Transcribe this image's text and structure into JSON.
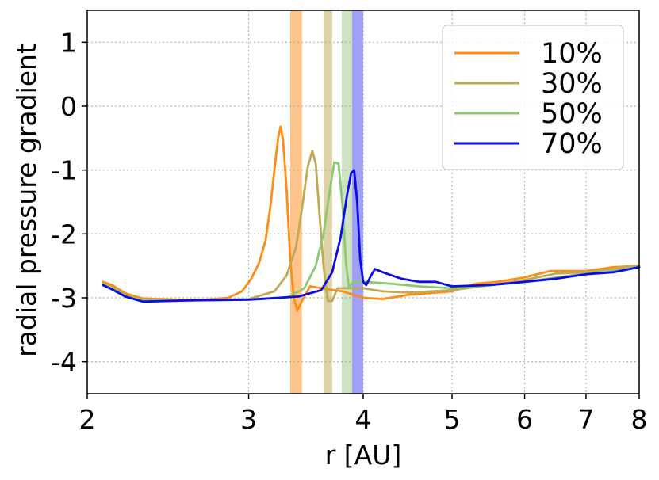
{
  "chart_data": {
    "type": "line",
    "title": "",
    "xlabel": "r [AU]",
    "ylabel": "radial pressure gradient",
    "x_scale": "log",
    "xlim": [
      2,
      8
    ],
    "ylim": [
      -4.5,
      1.5
    ],
    "xticks": [
      2,
      3,
      4,
      5,
      6,
      7,
      8
    ],
    "xtick_labels": [
      "2",
      "3",
      "4",
      "5",
      "6",
      "7",
      "8"
    ],
    "yticks": [
      1,
      0,
      -1,
      -2,
      -3,
      -4
    ],
    "ytick_labels": [
      "1",
      "0",
      "-1",
      "-2",
      "-3",
      "-4"
    ],
    "grid": true,
    "legend_position": "top-right",
    "bands": [
      {
        "from": 3.33,
        "to": 3.43,
        "color": "#ffc38c"
      },
      {
        "from": 3.62,
        "to": 3.7,
        "color": "#dcd2a5"
      },
      {
        "from": 3.79,
        "to": 3.89,
        "color": "#cde3c3"
      },
      {
        "from": 3.89,
        "to": 4.0,
        "color": "#a0a0f8"
      }
    ],
    "series": [
      {
        "name": "10%",
        "color": "#ff8c14",
        "points": [
          [
            2.08,
            -2.75
          ],
          [
            2.13,
            -2.8
          ],
          [
            2.2,
            -2.93
          ],
          [
            2.3,
            -3.01
          ],
          [
            2.5,
            -3.03
          ],
          [
            2.7,
            -3.03
          ],
          [
            2.85,
            -3.0
          ],
          [
            2.95,
            -2.9
          ],
          [
            3.02,
            -2.7
          ],
          [
            3.08,
            -2.45
          ],
          [
            3.13,
            -2.1
          ],
          [
            3.17,
            -1.55
          ],
          [
            3.2,
            -1.0
          ],
          [
            3.23,
            -0.5
          ],
          [
            3.25,
            -0.32
          ],
          [
            3.27,
            -0.52
          ],
          [
            3.3,
            -1.3
          ],
          [
            3.33,
            -2.4
          ],
          [
            3.36,
            -3.0
          ],
          [
            3.39,
            -3.2
          ],
          [
            3.43,
            -3.05
          ],
          [
            3.5,
            -2.82
          ],
          [
            3.6,
            -2.85
          ],
          [
            3.8,
            -2.9
          ],
          [
            4.0,
            -3.0
          ],
          [
            4.2,
            -3.02
          ],
          [
            4.5,
            -2.95
          ],
          [
            5.0,
            -2.9
          ],
          [
            5.3,
            -2.78
          ],
          [
            5.6,
            -2.75
          ],
          [
            6.0,
            -2.68
          ],
          [
            6.4,
            -2.58
          ],
          [
            7.0,
            -2.58
          ],
          [
            7.5,
            -2.52
          ],
          [
            8.0,
            -2.5
          ]
        ]
      },
      {
        "name": "30%",
        "color": "#bfaa55",
        "points": [
          [
            2.08,
            -2.78
          ],
          [
            2.13,
            -2.84
          ],
          [
            2.2,
            -2.96
          ],
          [
            2.3,
            -3.03
          ],
          [
            2.6,
            -3.04
          ],
          [
            3.0,
            -3.02
          ],
          [
            3.2,
            -2.9
          ],
          [
            3.3,
            -2.65
          ],
          [
            3.38,
            -2.2
          ],
          [
            3.43,
            -1.6
          ],
          [
            3.48,
            -0.95
          ],
          [
            3.52,
            -0.7
          ],
          [
            3.55,
            -0.9
          ],
          [
            3.58,
            -1.6
          ],
          [
            3.62,
            -2.5
          ],
          [
            3.66,
            -3.05
          ],
          [
            3.7,
            -3.05
          ],
          [
            3.75,
            -2.85
          ],
          [
            3.85,
            -2.85
          ],
          [
            4.0,
            -2.85
          ],
          [
            4.2,
            -2.9
          ],
          [
            4.5,
            -2.92
          ],
          [
            5.0,
            -2.88
          ],
          [
            5.5,
            -2.8
          ],
          [
            6.0,
            -2.72
          ],
          [
            6.5,
            -2.62
          ],
          [
            7.0,
            -2.6
          ],
          [
            7.5,
            -2.55
          ],
          [
            8.0,
            -2.5
          ]
        ]
      },
      {
        "name": "50%",
        "color": "#8cc873",
        "points": [
          [
            2.08,
            -2.79
          ],
          [
            2.13,
            -2.85
          ],
          [
            2.2,
            -2.97
          ],
          [
            2.3,
            -3.04
          ],
          [
            2.6,
            -3.04
          ],
          [
            3.0,
            -3.03
          ],
          [
            3.3,
            -3.0
          ],
          [
            3.45,
            -2.85
          ],
          [
            3.55,
            -2.5
          ],
          [
            3.62,
            -2.0
          ],
          [
            3.68,
            -1.3
          ],
          [
            3.72,
            -0.88
          ],
          [
            3.76,
            -0.9
          ],
          [
            3.8,
            -1.6
          ],
          [
            3.83,
            -2.45
          ],
          [
            3.86,
            -2.85
          ],
          [
            3.9,
            -2.75
          ],
          [
            4.0,
            -2.75
          ],
          [
            4.3,
            -2.78
          ],
          [
            4.6,
            -2.82
          ],
          [
            5.0,
            -2.85
          ],
          [
            5.5,
            -2.8
          ],
          [
            6.0,
            -2.75
          ],
          [
            7.0,
            -2.62
          ],
          [
            7.5,
            -2.58
          ],
          [
            8.0,
            -2.52
          ]
        ]
      },
      {
        "name": "70%",
        "color": "#0a0aeb",
        "points": [
          [
            2.08,
            -2.8
          ],
          [
            2.13,
            -2.87
          ],
          [
            2.2,
            -2.98
          ],
          [
            2.3,
            -3.06
          ],
          [
            2.6,
            -3.04
          ],
          [
            3.0,
            -3.03
          ],
          [
            3.4,
            -2.98
          ],
          [
            3.6,
            -2.88
          ],
          [
            3.7,
            -2.6
          ],
          [
            3.78,
            -2.05
          ],
          [
            3.84,
            -1.4
          ],
          [
            3.88,
            -1.05
          ],
          [
            3.91,
            -1.0
          ],
          [
            3.94,
            -1.5
          ],
          [
            3.97,
            -2.4
          ],
          [
            4.0,
            -2.75
          ],
          [
            4.03,
            -2.8
          ],
          [
            4.08,
            -2.65
          ],
          [
            4.12,
            -2.55
          ],
          [
            4.2,
            -2.6
          ],
          [
            4.4,
            -2.7
          ],
          [
            4.6,
            -2.75
          ],
          [
            4.8,
            -2.75
          ],
          [
            5.0,
            -2.82
          ],
          [
            5.5,
            -2.8
          ],
          [
            6.0,
            -2.75
          ],
          [
            6.5,
            -2.7
          ],
          [
            7.0,
            -2.63
          ],
          [
            7.5,
            -2.6
          ],
          [
            8.0,
            -2.52
          ]
        ]
      }
    ]
  }
}
